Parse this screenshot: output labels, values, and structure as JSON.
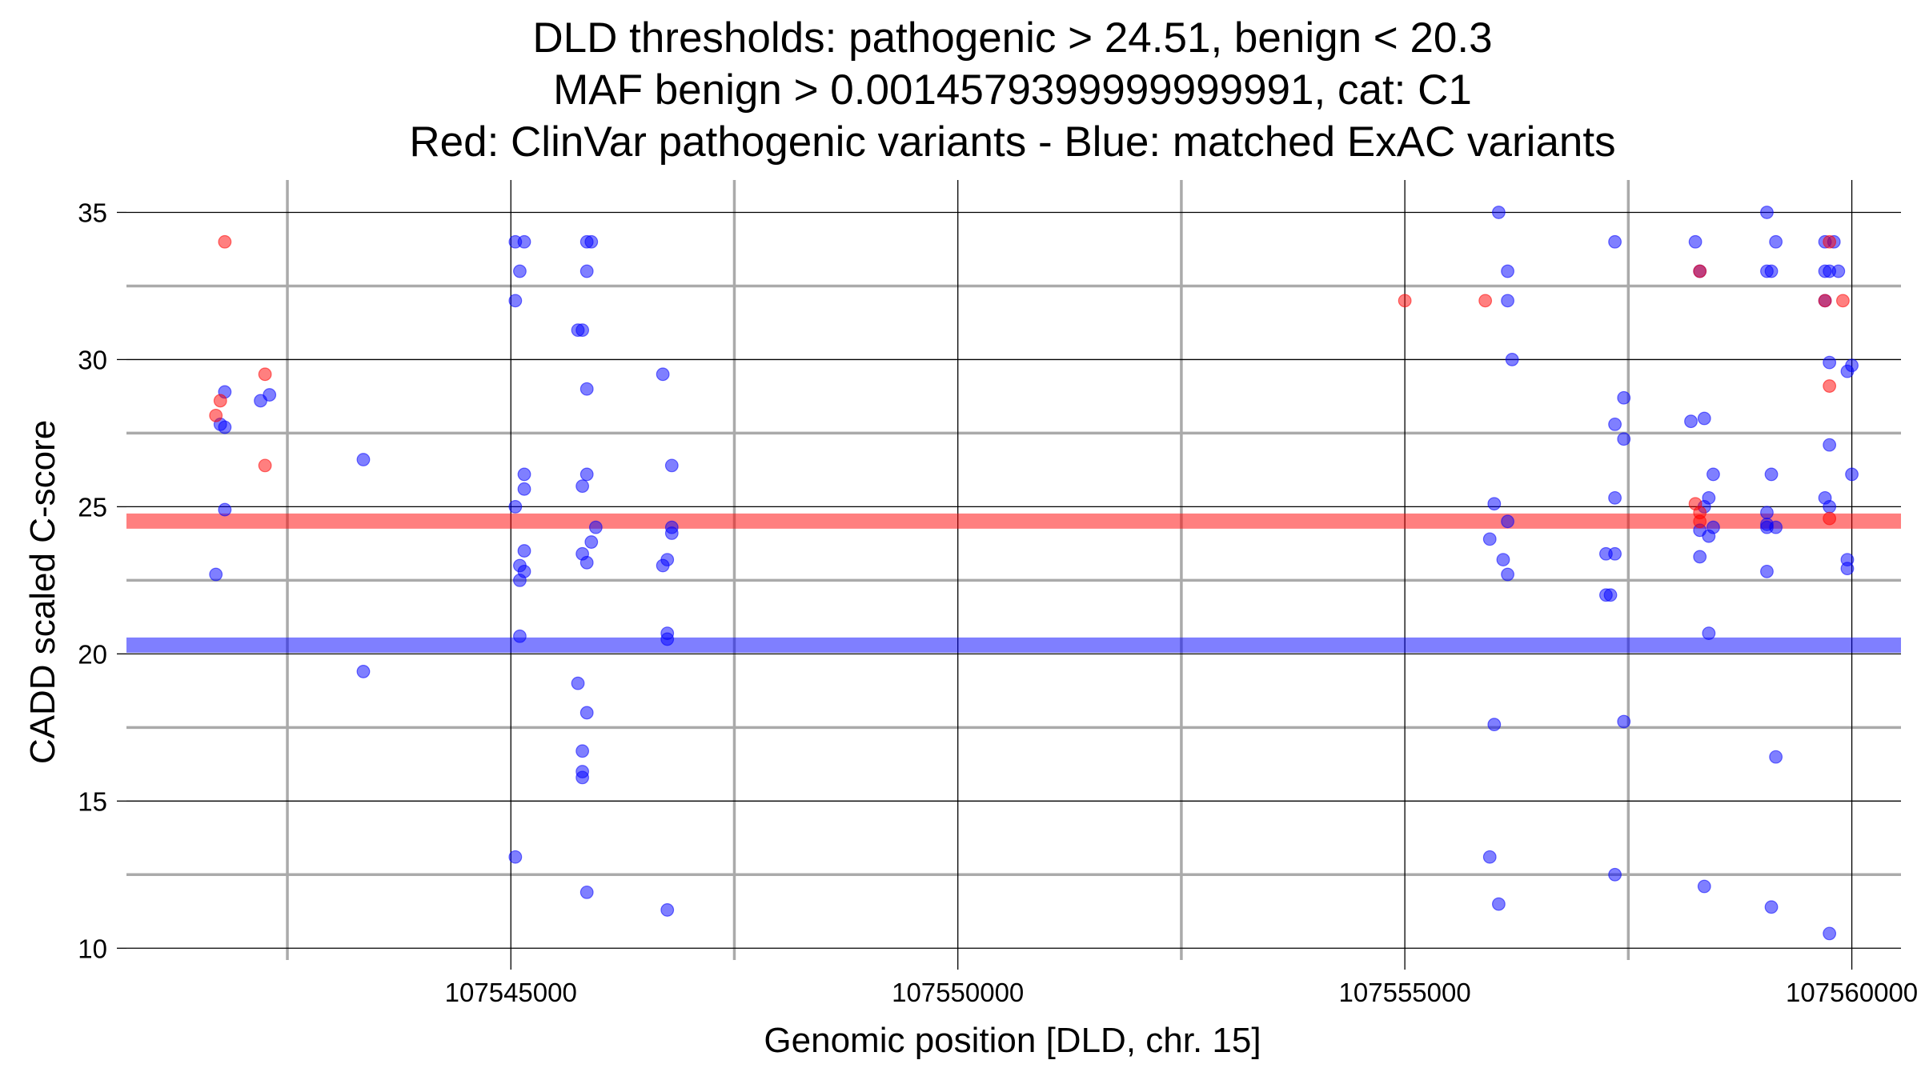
{
  "chart_data": {
    "type": "scatter",
    "title_lines": [
      "DLD thresholds: pathogenic > 24.51, benign < 20.3",
      "MAF benign > 0.0014579399999999991, cat: C1",
      "Red: ClinVar pathogenic variants - Blue: matched ExAC variants"
    ],
    "xlabel": "Genomic position [DLD, chr. 15]",
    "ylabel": "CADD scaled C-score",
    "xlim": [
      107540700,
      107560550
    ],
    "ylim": [
      9.6,
      36.1
    ],
    "x_ticks": [
      107545000,
      107550000,
      107555000,
      107560000
    ],
    "x_tick_labels": [
      "107545000",
      "107550000",
      "107555000",
      "107560000"
    ],
    "y_ticks": [
      10,
      15,
      20,
      25,
      30,
      35
    ],
    "y_tick_labels": [
      "10",
      "15",
      "20",
      "25",
      "30",
      "35"
    ],
    "x_minor_ticks": [
      107542500,
      107547500,
      107552500,
      107557500
    ],
    "y_minor_ticks": [
      12.5,
      17.5,
      22.5,
      27.5,
      32.5
    ],
    "grid": true,
    "colors": {
      "pathogenic": "#ff0000",
      "benign": "#0000ff",
      "major_grid": "#000000",
      "minor_grid": "#aaaaaa"
    },
    "thresholds": [
      {
        "name": "pathogenic",
        "value": 24.51,
        "color": "#ff0000"
      },
      {
        "name": "benign",
        "value": 20.3,
        "color": "#0000ff"
      }
    ],
    "series": [
      {
        "name": "ClinVar pathogenic variants",
        "color": "#ff0000",
        "points": [
          [
            107541800,
            34.0
          ],
          [
            107541700,
            28.1
          ],
          [
            107541750,
            28.6
          ],
          [
            107542250,
            29.5
          ],
          [
            107542250,
            26.4
          ],
          [
            107555900,
            32.0
          ],
          [
            107555000,
            32.0
          ],
          [
            107558300,
            33.0
          ],
          [
            107558250,
            25.1
          ],
          [
            107558300,
            24.8
          ],
          [
            107558300,
            24.5
          ],
          [
            107559750,
            34.0
          ],
          [
            107559700,
            32.0
          ],
          [
            107559900,
            32.0
          ],
          [
            107559750,
            29.1
          ],
          [
            107559750,
            24.6
          ]
        ]
      },
      {
        "name": "matched ExAC variants",
        "color": "#0000ff",
        "points": [
          [
            107541800,
            28.9
          ],
          [
            107541750,
            27.8
          ],
          [
            107541800,
            27.7
          ],
          [
            107541800,
            24.9
          ],
          [
            107541700,
            22.7
          ],
          [
            107542200,
            28.6
          ],
          [
            107542300,
            28.8
          ],
          [
            107543350,
            26.6
          ],
          [
            107543350,
            19.4
          ],
          [
            107545050,
            34.0
          ],
          [
            107545150,
            34.0
          ],
          [
            107545100,
            33.0
          ],
          [
            107545050,
            32.0
          ],
          [
            107545150,
            26.1
          ],
          [
            107545150,
            25.6
          ],
          [
            107545050,
            25.0
          ],
          [
            107545150,
            23.5
          ],
          [
            107545100,
            23.0
          ],
          [
            107545150,
            22.8
          ],
          [
            107545100,
            22.5
          ],
          [
            107545100,
            20.6
          ],
          [
            107545050,
            13.1
          ],
          [
            107545850,
            34.0
          ],
          [
            107545900,
            34.0
          ],
          [
            107545850,
            33.0
          ],
          [
            107545750,
            31.0
          ],
          [
            107545800,
            31.0
          ],
          [
            107545850,
            29.0
          ],
          [
            107545850,
            26.1
          ],
          [
            107545800,
            25.7
          ],
          [
            107545950,
            24.3
          ],
          [
            107545900,
            23.8
          ],
          [
            107545800,
            23.4
          ],
          [
            107545850,
            23.1
          ],
          [
            107545750,
            19.0
          ],
          [
            107545850,
            18.0
          ],
          [
            107545800,
            16.7
          ],
          [
            107545800,
            16.0
          ],
          [
            107545800,
            15.8
          ],
          [
            107545850,
            11.9
          ],
          [
            107546700,
            29.5
          ],
          [
            107546800,
            26.4
          ],
          [
            107546800,
            24.3
          ],
          [
            107546800,
            24.1
          ],
          [
            107546750,
            23.2
          ],
          [
            107546700,
            23.0
          ],
          [
            107546750,
            20.7
          ],
          [
            107546750,
            20.5
          ],
          [
            107546750,
            11.3
          ],
          [
            107556050,
            35.0
          ],
          [
            107556150,
            33.0
          ],
          [
            107556150,
            32.0
          ],
          [
            107556200,
            30.0
          ],
          [
            107556000,
            25.1
          ],
          [
            107556150,
            24.5
          ],
          [
            107555950,
            23.9
          ],
          [
            107556100,
            23.2
          ],
          [
            107556150,
            22.7
          ],
          [
            107556000,
            17.6
          ],
          [
            107555950,
            13.1
          ],
          [
            107556050,
            11.5
          ],
          [
            107557350,
            34.0
          ],
          [
            107557450,
            28.7
          ],
          [
            107557350,
            27.8
          ],
          [
            107557450,
            27.3
          ],
          [
            107557350,
            25.3
          ],
          [
            107557250,
            23.4
          ],
          [
            107557350,
            23.4
          ],
          [
            107557250,
            22.0
          ],
          [
            107557300,
            22.0
          ],
          [
            107557450,
            17.7
          ],
          [
            107557350,
            12.5
          ],
          [
            107558250,
            34.0
          ],
          [
            107558300,
            33.0
          ],
          [
            107558200,
            27.9
          ],
          [
            107558350,
            28.0
          ],
          [
            107558450,
            26.1
          ],
          [
            107558400,
            25.3
          ],
          [
            107558350,
            25.0
          ],
          [
            107558300,
            24.2
          ],
          [
            107558450,
            24.3
          ],
          [
            107558400,
            24.0
          ],
          [
            107558300,
            23.3
          ],
          [
            107558400,
            20.7
          ],
          [
            107558350,
            12.1
          ],
          [
            107559050,
            35.0
          ],
          [
            107559150,
            34.0
          ],
          [
            107559050,
            33.0
          ],
          [
            107559100,
            33.0
          ],
          [
            107559100,
            26.1
          ],
          [
            107559050,
            24.8
          ],
          [
            107559050,
            24.4
          ],
          [
            107559150,
            24.3
          ],
          [
            107559050,
            24.3
          ],
          [
            107559050,
            22.8
          ],
          [
            107559150,
            16.5
          ],
          [
            107559100,
            11.4
          ],
          [
            107559700,
            34.0
          ],
          [
            107559800,
            34.0
          ],
          [
            107559700,
            33.0
          ],
          [
            107559750,
            33.0
          ],
          [
            107559850,
            33.0
          ],
          [
            107559700,
            32.0
          ],
          [
            107559750,
            29.9
          ],
          [
            107559950,
            29.6
          ],
          [
            107560000,
            29.8
          ],
          [
            107559750,
            27.1
          ],
          [
            107560000,
            26.1
          ],
          [
            107559700,
            25.3
          ],
          [
            107559750,
            25.0
          ],
          [
            107559950,
            23.2
          ],
          [
            107559950,
            22.9
          ],
          [
            107559750,
            10.5
          ]
        ]
      }
    ]
  }
}
